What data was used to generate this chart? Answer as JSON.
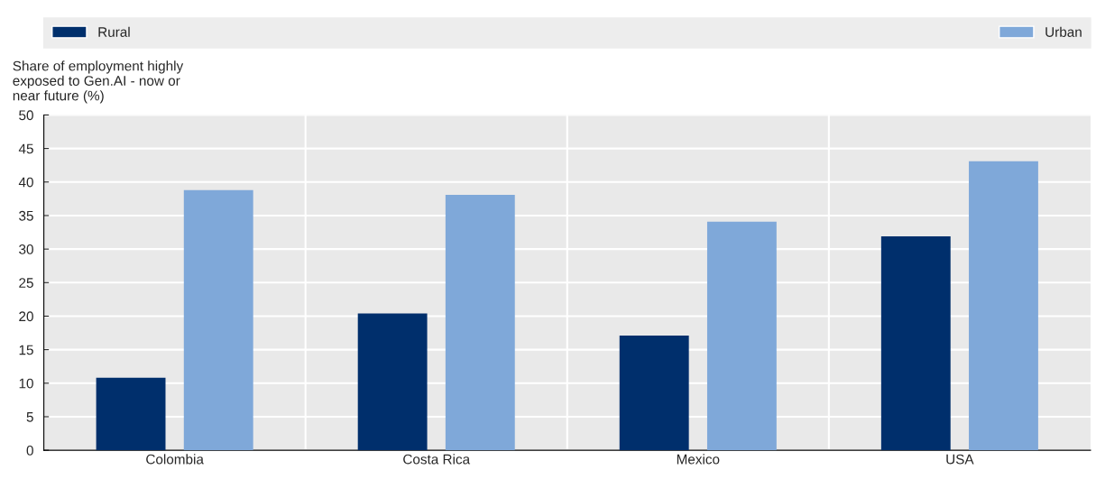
{
  "chart_data": {
    "type": "bar",
    "ylabel": "Share of employment highly\nexposed to Gen.AI - now or\nnear future (%)",
    "categories": [
      "Colombia",
      "Costa Rica",
      "Mexico",
      "USA"
    ],
    "series": [
      {
        "name": "Rural",
        "color": "#002f6c",
        "values": [
          10.8,
          20.4,
          17.1,
          31.9
        ]
      },
      {
        "name": "Urban",
        "color": "#7fa8d9",
        "values": [
          38.8,
          38.1,
          34.1,
          43.1
        ]
      }
    ],
    "ylim": [
      0,
      50
    ],
    "yticks": [
      0,
      5,
      10,
      15,
      20,
      25,
      30,
      35,
      40,
      45,
      50
    ],
    "grid": "y",
    "legend": "top"
  }
}
